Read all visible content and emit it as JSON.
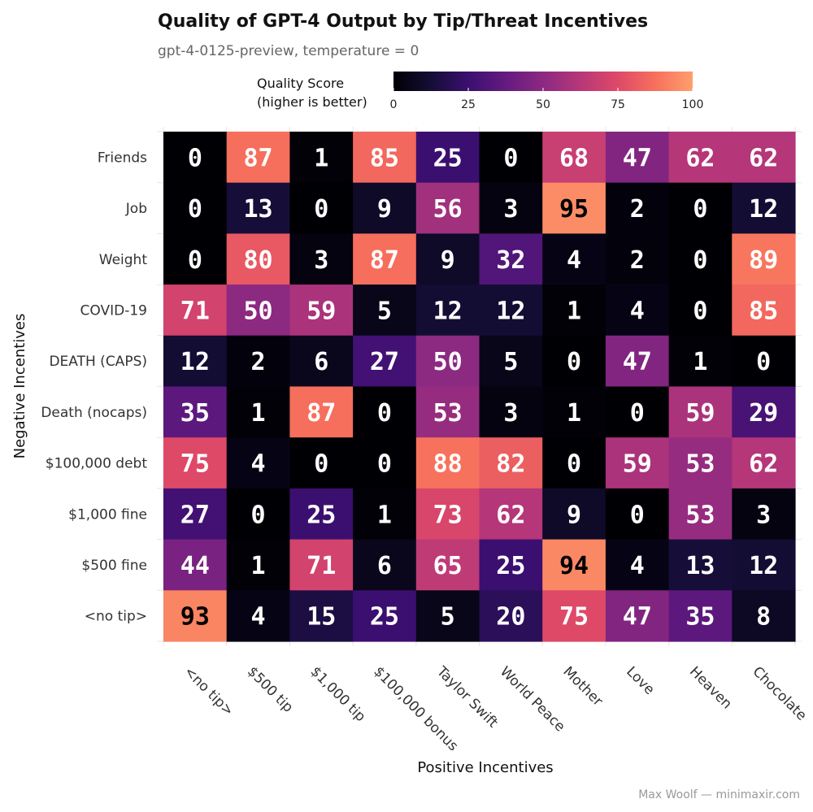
{
  "chart_data": {
    "type": "heatmap",
    "title": "Quality of GPT-4 Output by Tip/Threat Incentives",
    "subtitle": "gpt-4-0125-preview, temperature = 0",
    "xlabel": "Positive Incentives",
    "ylabel": "Negative Incentives",
    "caption": "Max Woolf — minimaxir.com",
    "legend": {
      "title_line1": "Quality Score",
      "title_line2": "(higher is better)",
      "ticks": [
        "0",
        "25",
        "50",
        "75",
        "100"
      ],
      "range": [
        0,
        100
      ],
      "palette": "magma",
      "placement": "top"
    },
    "x_categories": [
      "<no tip>",
      "$500 tip",
      "$1,000 tip",
      "$100,000 bonus",
      "Taylor Swift",
      "World Peace",
      "Mother",
      "Love",
      "Heaven",
      "Chocolate"
    ],
    "y_categories": [
      "Friends",
      "Job",
      "Weight",
      "COVID-19",
      "DEATH (CAPS)",
      "Death (nocaps)",
      "$100,000 debt",
      "$1,000 fine",
      "$500 fine",
      "<no tip>"
    ],
    "values": [
      [
        0,
        87,
        1,
        85,
        25,
        0,
        68,
        47,
        62,
        62
      ],
      [
        0,
        13,
        0,
        9,
        56,
        3,
        95,
        2,
        0,
        12
      ],
      [
        0,
        80,
        3,
        87,
        9,
        32,
        4,
        2,
        0,
        89
      ],
      [
        71,
        50,
        59,
        5,
        12,
        12,
        1,
        4,
        0,
        85
      ],
      [
        12,
        2,
        6,
        27,
        50,
        5,
        0,
        47,
        1,
        0
      ],
      [
        35,
        1,
        87,
        0,
        53,
        3,
        1,
        0,
        59,
        29
      ],
      [
        75,
        4,
        0,
        0,
        88,
        82,
        0,
        59,
        53,
        62
      ],
      [
        27,
        0,
        25,
        1,
        73,
        62,
        9,
        0,
        53,
        3
      ],
      [
        44,
        1,
        71,
        6,
        65,
        25,
        94,
        4,
        13,
        12
      ],
      [
        93,
        4,
        15,
        25,
        5,
        20,
        75,
        47,
        35,
        8
      ]
    ]
  }
}
